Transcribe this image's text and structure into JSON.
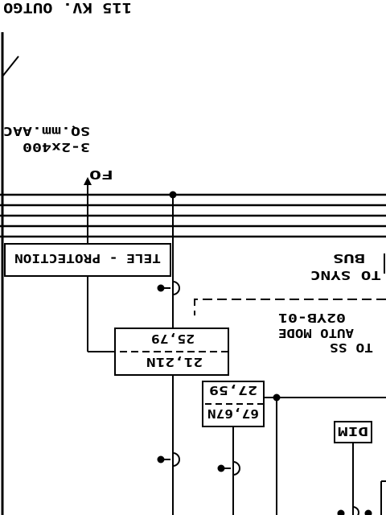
{
  "diagram": {
    "title": "115 KV. OUTGO",
    "conductor_line1": "SQ.mm.AAC",
    "conductor_line2": "3-2x400",
    "fo_label": "FO",
    "tele_protection": "TELE - PROTECTION",
    "to_sync_line1": "BUS",
    "to_sync_line2": "TO SYNC",
    "to_ss_line1": "02YB-01",
    "to_ss_line2": "AUTO MODE",
    "to_ss_line3": "TO SS",
    "relay1_top": "25,79",
    "relay1_bottom": "21,21N",
    "relay2_top": "27,59",
    "relay2_bottom": "67,67N",
    "dim_label": "DIM"
  }
}
